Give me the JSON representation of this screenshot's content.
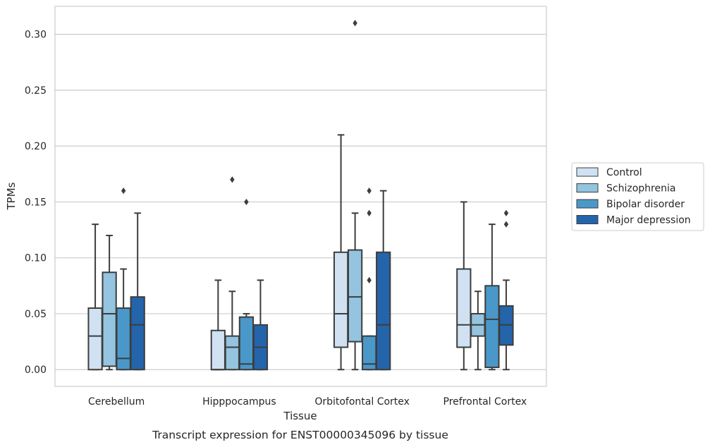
{
  "caption": "Transcript expression for ENST00000345096 by tissue",
  "chart_data": {
    "type": "box",
    "title": "",
    "xlabel": "Tissue",
    "ylabel": "TPMs",
    "ylim": [
      -0.015,
      0.325
    ],
    "yticks": [
      0.0,
      0.05,
      0.1,
      0.15,
      0.2,
      0.25,
      0.3
    ],
    "ytick_labels": [
      "0.00",
      "0.05",
      "0.10",
      "0.15",
      "0.20",
      "0.25",
      "0.30"
    ],
    "grid": "horizontal",
    "legend_position": "right",
    "categories": [
      "Cerebellum",
      "Hipppocampus",
      "Orbitofontal Cortex",
      "Prefrontal Cortex"
    ],
    "series": [
      {
        "name": "Control",
        "color": "#d0e1f2",
        "boxes": [
          {
            "whisker_low": 0.0,
            "q1": 0.0,
            "median": 0.03,
            "q3": 0.055,
            "whisker_high": 0.13,
            "outliers": []
          },
          {
            "whisker_low": 0.0,
            "q1": 0.0,
            "median": 0.0,
            "q3": 0.035,
            "whisker_high": 0.08,
            "outliers": []
          },
          {
            "whisker_low": 0.0,
            "q1": 0.02,
            "median": 0.05,
            "q3": 0.105,
            "whisker_high": 0.21,
            "outliers": []
          },
          {
            "whisker_low": 0.0,
            "q1": 0.02,
            "median": 0.04,
            "q3": 0.09,
            "whisker_high": 0.15,
            "outliers": []
          }
        ]
      },
      {
        "name": "Schizophrenia",
        "color": "#94c4df",
        "boxes": [
          {
            "whisker_low": 0.0,
            "q1": 0.003,
            "median": 0.05,
            "q3": 0.087,
            "whisker_high": 0.12,
            "outliers": []
          },
          {
            "whisker_low": 0.0,
            "q1": 0.0,
            "median": 0.02,
            "q3": 0.03,
            "whisker_high": 0.07,
            "outliers": [
              0.17
            ]
          },
          {
            "whisker_low": 0.0,
            "q1": 0.025,
            "median": 0.065,
            "q3": 0.107,
            "whisker_high": 0.14,
            "outliers": [
              0.31
            ]
          },
          {
            "whisker_low": 0.0,
            "q1": 0.03,
            "median": 0.04,
            "q3": 0.05,
            "whisker_high": 0.07,
            "outliers": []
          }
        ]
      },
      {
        "name": "Bipolar disorder",
        "color": "#4a98c9",
        "boxes": [
          {
            "whisker_low": 0.0,
            "q1": 0.0,
            "median": 0.01,
            "q3": 0.055,
            "whisker_high": 0.09,
            "outliers": [
              0.16
            ]
          },
          {
            "whisker_low": 0.0,
            "q1": 0.0,
            "median": 0.005,
            "q3": 0.047,
            "whisker_high": 0.05,
            "outliers": [
              0.15
            ]
          },
          {
            "whisker_low": 0.0,
            "q1": 0.0,
            "median": 0.005,
            "q3": 0.03,
            "whisker_high": 0.03,
            "outliers": [
              0.08,
              0.14,
              0.16
            ]
          },
          {
            "whisker_low": 0.0,
            "q1": 0.002,
            "median": 0.045,
            "q3": 0.075,
            "whisker_high": 0.13,
            "outliers": []
          }
        ]
      },
      {
        "name": "Major depression",
        "color": "#2464ab",
        "boxes": [
          {
            "whisker_low": 0.0,
            "q1": 0.0,
            "median": 0.04,
            "q3": 0.065,
            "whisker_high": 0.14,
            "outliers": []
          },
          {
            "whisker_low": 0.0,
            "q1": 0.0,
            "median": 0.02,
            "q3": 0.04,
            "whisker_high": 0.08,
            "outliers": []
          },
          {
            "whisker_low": 0.0,
            "q1": 0.0,
            "median": 0.04,
            "q3": 0.105,
            "whisker_high": 0.16,
            "outliers": []
          },
          {
            "whisker_low": 0.0,
            "q1": 0.022,
            "median": 0.04,
            "q3": 0.057,
            "whisker_high": 0.08,
            "outliers": [
              0.13,
              0.14
            ]
          }
        ]
      }
    ]
  }
}
